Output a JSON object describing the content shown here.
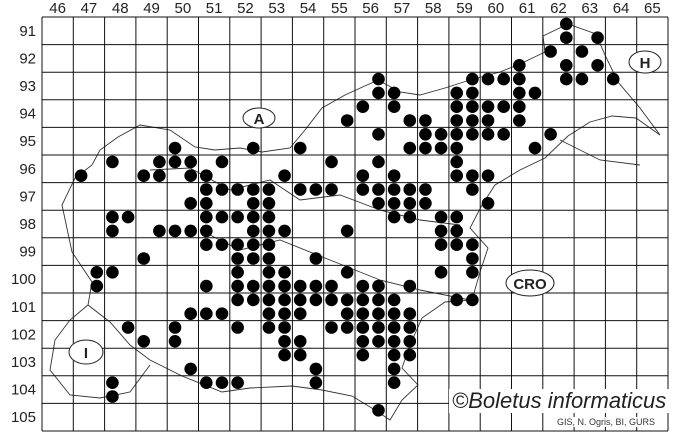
{
  "map": {
    "columns": [
      "46",
      "47",
      "48",
      "49",
      "50",
      "51",
      "52",
      "53",
      "54",
      "55",
      "56",
      "57",
      "58",
      "59",
      "60",
      "61",
      "62",
      "63",
      "64",
      "65"
    ],
    "rows": [
      "91",
      "92",
      "93",
      "94",
      "95",
      "96",
      "97",
      "98",
      "99",
      "100",
      "101",
      "102",
      "103",
      "104",
      "105"
    ],
    "country_labels": {
      "austria": "A",
      "hungary": "H",
      "croatia": "CRO",
      "italy": "I"
    },
    "dot_color": "#000000",
    "dots": [
      [
        62.75,
        91.25
      ],
      [
        62.75,
        91.75
      ],
      [
        63.75,
        91.75
      ],
      [
        62.25,
        92.25
      ],
      [
        63.25,
        92.25
      ],
      [
        61.25,
        92.75
      ],
      [
        62.75,
        92.75
      ],
      [
        63.75,
        92.75
      ],
      [
        56.75,
        93.25
      ],
      [
        59.75,
        93.25
      ],
      [
        60.25,
        93.25
      ],
      [
        60.75,
        93.25
      ],
      [
        61.25,
        93.25
      ],
      [
        62.75,
        93.25
      ],
      [
        63.25,
        93.25
      ],
      [
        64.25,
        93.25
      ],
      [
        56.75,
        93.75
      ],
      [
        57.25,
        93.75
      ],
      [
        59.25,
        93.75
      ],
      [
        59.75,
        93.75
      ],
      [
        61.25,
        93.75
      ],
      [
        61.75,
        93.75
      ],
      [
        56.25,
        94.25
      ],
      [
        57.25,
        94.25
      ],
      [
        59.25,
        94.25
      ],
      [
        59.75,
        94.25
      ],
      [
        60.25,
        94.25
      ],
      [
        60.75,
        94.25
      ],
      [
        61.25,
        94.25
      ],
      [
        55.75,
        94.75
      ],
      [
        57.75,
        94.75
      ],
      [
        58.25,
        94.75
      ],
      [
        59.25,
        94.75
      ],
      [
        59.75,
        94.75
      ],
      [
        60.25,
        94.75
      ],
      [
        61.25,
        94.75
      ],
      [
        56.75,
        95.25
      ],
      [
        58.25,
        95.25
      ],
      [
        58.75,
        95.25
      ],
      [
        59.25,
        95.25
      ],
      [
        59.75,
        95.25
      ],
      [
        60.25,
        95.25
      ],
      [
        60.75,
        95.25
      ],
      [
        62.25,
        95.25
      ],
      [
        50.25,
        95.75
      ],
      [
        52.75,
        95.75
      ],
      [
        54.25,
        95.75
      ],
      [
        57.75,
        95.75
      ],
      [
        58.25,
        95.75
      ],
      [
        58.75,
        95.75
      ],
      [
        59.25,
        95.75
      ],
      [
        61.75,
        95.75
      ],
      [
        48.25,
        96.25
      ],
      [
        49.75,
        96.25
      ],
      [
        50.25,
        96.25
      ],
      [
        50.75,
        96.25
      ],
      [
        51.75,
        96.25
      ],
      [
        55.25,
        96.25
      ],
      [
        56.75,
        96.25
      ],
      [
        59.25,
        96.25
      ],
      [
        47.25,
        96.75
      ],
      [
        49.25,
        96.75
      ],
      [
        49.75,
        96.75
      ],
      [
        50.75,
        96.75
      ],
      [
        51.25,
        96.75
      ],
      [
        53.75,
        96.75
      ],
      [
        56.25,
        96.75
      ],
      [
        57.25,
        96.75
      ],
      [
        59.25,
        96.75
      ],
      [
        59.75,
        96.75
      ],
      [
        60.25,
        96.75
      ],
      [
        51.25,
        97.25
      ],
      [
        51.75,
        97.25
      ],
      [
        52.25,
        97.25
      ],
      [
        52.75,
        97.25
      ],
      [
        53.25,
        97.25
      ],
      [
        54.25,
        97.25
      ],
      [
        54.75,
        97.25
      ],
      [
        55.25,
        97.25
      ],
      [
        56.25,
        97.25
      ],
      [
        56.75,
        97.25
      ],
      [
        57.25,
        97.25
      ],
      [
        57.75,
        97.25
      ],
      [
        58.25,
        97.25
      ],
      [
        59.75,
        97.25
      ],
      [
        50.75,
        97.75
      ],
      [
        51.25,
        97.75
      ],
      [
        52.75,
        97.75
      ],
      [
        53.25,
        97.75
      ],
      [
        56.75,
        97.75
      ],
      [
        57.25,
        97.75
      ],
      [
        57.75,
        97.75
      ],
      [
        58.25,
        97.75
      ],
      [
        60.25,
        97.75
      ],
      [
        48.25,
        98.25
      ],
      [
        48.75,
        98.25
      ],
      [
        51.25,
        98.25
      ],
      [
        51.75,
        98.25
      ],
      [
        52.25,
        98.25
      ],
      [
        52.75,
        98.25
      ],
      [
        53.25,
        98.25
      ],
      [
        57.25,
        98.25
      ],
      [
        57.75,
        98.25
      ],
      [
        58.75,
        98.25
      ],
      [
        59.25,
        98.25
      ],
      [
        48.25,
        98.75
      ],
      [
        49.75,
        98.75
      ],
      [
        50.25,
        98.75
      ],
      [
        50.75,
        98.75
      ],
      [
        51.25,
        98.75
      ],
      [
        52.75,
        98.75
      ],
      [
        53.25,
        98.75
      ],
      [
        53.75,
        98.75
      ],
      [
        55.75,
        98.75
      ],
      [
        58.75,
        98.75
      ],
      [
        59.25,
        98.75
      ],
      [
        51.25,
        99.25
      ],
      [
        51.75,
        99.25
      ],
      [
        52.25,
        99.25
      ],
      [
        52.75,
        99.25
      ],
      [
        53.25,
        99.25
      ],
      [
        58.75,
        99.25
      ],
      [
        59.25,
        99.25
      ],
      [
        59.75,
        99.25
      ],
      [
        49.25,
        99.75
      ],
      [
        52.25,
        99.75
      ],
      [
        52.75,
        99.75
      ],
      [
        53.25,
        99.75
      ],
      [
        54.75,
        99.75
      ],
      [
        59.75,
        99.75
      ],
      [
        47.75,
        100.25
      ],
      [
        48.25,
        100.25
      ],
      [
        52.25,
        100.25
      ],
      [
        53.25,
        100.25
      ],
      [
        53.75,
        100.25
      ],
      [
        55.75,
        100.25
      ],
      [
        58.75,
        100.25
      ],
      [
        59.75,
        100.25
      ],
      [
        47.75,
        100.75
      ],
      [
        51.25,
        100.75
      ],
      [
        52.25,
        100.75
      ],
      [
        52.75,
        100.75
      ],
      [
        53.25,
        100.75
      ],
      [
        53.75,
        100.75
      ],
      [
        54.25,
        100.75
      ],
      [
        54.75,
        100.75
      ],
      [
        55.25,
        100.75
      ],
      [
        56.25,
        100.75
      ],
      [
        56.75,
        100.75
      ],
      [
        57.75,
        100.75
      ],
      [
        52.25,
        101.25
      ],
      [
        52.75,
        101.25
      ],
      [
        53.25,
        101.25
      ],
      [
        53.75,
        101.25
      ],
      [
        54.25,
        101.25
      ],
      [
        54.75,
        101.25
      ],
      [
        55.25,
        101.25
      ],
      [
        55.75,
        101.25
      ],
      [
        56.25,
        101.25
      ],
      [
        56.75,
        101.25
      ],
      [
        57.25,
        101.25
      ],
      [
        59.25,
        101.25
      ],
      [
        59.75,
        101.25
      ],
      [
        50.75,
        101.75
      ],
      [
        51.25,
        101.75
      ],
      [
        51.75,
        101.75
      ],
      [
        53.25,
        101.75
      ],
      [
        53.75,
        101.75
      ],
      [
        54.25,
        101.75
      ],
      [
        55.75,
        101.75
      ],
      [
        56.25,
        101.75
      ],
      [
        56.75,
        101.75
      ],
      [
        57.25,
        101.75
      ],
      [
        57.75,
        101.75
      ],
      [
        48.75,
        102.25
      ],
      [
        50.25,
        102.25
      ],
      [
        52.25,
        102.25
      ],
      [
        53.25,
        102.25
      ],
      [
        53.75,
        102.25
      ],
      [
        55.25,
        102.25
      ],
      [
        55.75,
        102.25
      ],
      [
        56.25,
        102.25
      ],
      [
        56.75,
        102.25
      ],
      [
        57.25,
        102.25
      ],
      [
        57.75,
        102.25
      ],
      [
        49.25,
        102.75
      ],
      [
        50.25,
        102.75
      ],
      [
        53.75,
        102.75
      ],
      [
        54.25,
        102.75
      ],
      [
        56.25,
        102.75
      ],
      [
        56.75,
        102.75
      ],
      [
        57.25,
        102.75
      ],
      [
        57.75,
        102.75
      ],
      [
        53.75,
        103.25
      ],
      [
        54.25,
        103.25
      ],
      [
        56.25,
        103.25
      ],
      [
        57.25,
        103.25
      ],
      [
        57.75,
        103.25
      ],
      [
        50.75,
        103.75
      ],
      [
        54.75,
        103.75
      ],
      [
        57.25,
        103.75
      ],
      [
        48.25,
        104.25
      ],
      [
        51.25,
        104.25
      ],
      [
        51.75,
        104.25
      ],
      [
        52.25,
        104.25
      ],
      [
        54.75,
        104.25
      ],
      [
        57.25,
        104.25
      ],
      [
        48.25,
        104.75
      ],
      [
        56.75,
        105.25
      ]
    ]
  },
  "credit": {
    "copyright": "©Boletus informaticus",
    "source": "GIS, N. Ogris, BI, GURS"
  }
}
